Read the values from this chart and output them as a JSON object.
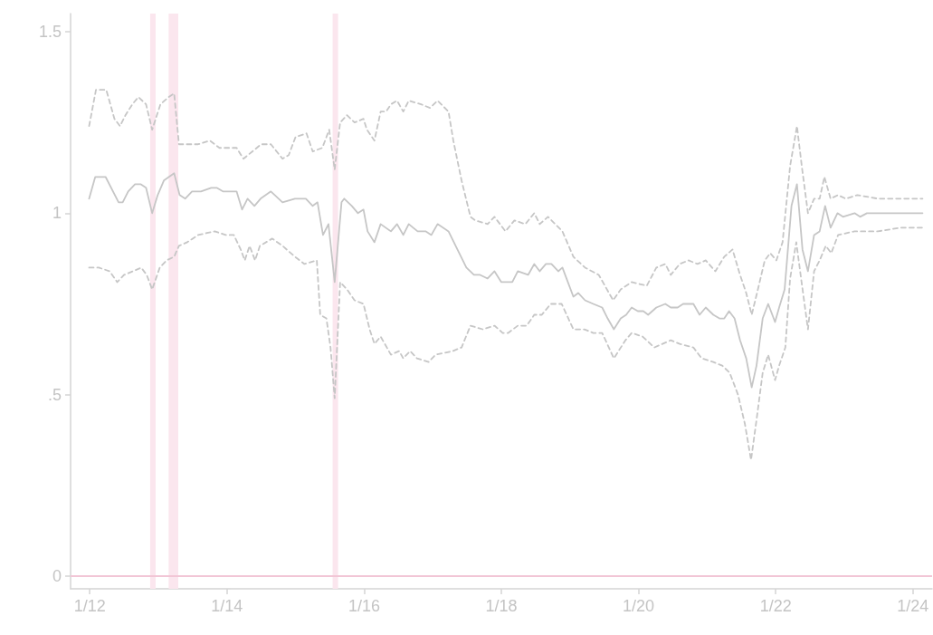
{
  "chart_data": {
    "type": "line",
    "marker": "none",
    "xlim": [
      "--01-11T17:17",
      "--01-24T06:43"
    ],
    "ylim": [
      -0.035,
      1.55
    ],
    "xticks": [
      {
        "value": "--01-12",
        "label": "1/12"
      },
      {
        "value": "--01-14",
        "label": "1/14"
      },
      {
        "value": "--01-16",
        "label": "1/16"
      },
      {
        "value": "--01-18",
        "label": "1/18"
      },
      {
        "value": "--01-20",
        "label": "1/20"
      },
      {
        "value": "--01-22",
        "label": "1/22"
      },
      {
        "value": "--01-24",
        "label": "1/24"
      }
    ],
    "yticks": [
      0,
      {
        "value": 0.5,
        "label": ".5"
      },
      1,
      1.5
    ],
    "series": [
      {
        "color": "#c6c6c6",
        "line_style": "solid",
        "x": [
          "--01-11T23:46",
          "--01-12T01:55",
          "--01-12T05:31",
          "--01-12T10:05",
          "--01-12T11:31",
          "--01-12T13:26",
          "--01-12T15:50",
          "--01-12T17:46",
          "--01-12T19:41",
          "--01-12T21:50",
          "--01-12T23:46",
          "--01-13T01:55",
          "--01-13T05:31",
          "--01-13T07:26",
          "--01-13T09:22",
          "--01-13T11:46",
          "--01-13T14:53",
          "--01-13T18:29",
          "--01-13T20:24",
          "--01-13T22:34",
          "--01-14T01:12",
          "--01-14T03:22",
          "--01-14T05:17",
          "--01-14T07:12",
          "--01-14T09:36",
          "--01-14T11:46",
          "--01-14T15:22",
          "--01-14T19:26",
          "--01-14T23:46",
          "--01-15T03:36",
          "--01-15T06:00",
          "--01-15T07:41",
          "--01-15T09:36",
          "--01-15T11:31",
          "--01-15T13:41",
          "--01-15T16:05",
          "--01-15T17:02",
          "--01-15T19:41",
          "--01-15T21:50",
          "--01-15T23:46",
          "--01-16T01:12",
          "--01-16T03:36",
          "--01-16T05:46",
          "--01-16T09:22",
          "--01-16T11:31",
          "--01-16T13:41",
          "--01-16T15:36",
          "--01-16T18:43",
          "--01-16T21:36",
          "--01-16T23:31",
          "--01-17T01:41",
          "--01-17T05:31",
          "--01-17T08:38",
          "--01-17T11:46",
          "--01-17T14:24",
          "--01-17T16:34",
          "--01-17T19:12",
          "--01-17T21:36",
          "--01-18T00:00",
          "--01-18T02:10",
          "--01-18T03:50",
          "--01-18T05:46",
          "--01-18T09:22",
          "--01-18T11:31",
          "--01-18T13:26",
          "--01-18T15:36",
          "--01-18T17:31",
          "--01-18T19:55",
          "--01-18T21:22",
          "--01-19T01:12",
          "--01-19T02:53",
          "--01-19T05:17",
          "--01-19T08:10",
          "--01-19T11:17",
          "--01-19T13:12",
          "--01-19T15:22",
          "--01-19T17:46",
          "--01-19T19:41",
          "--01-19T21:36",
          "--01-19T23:46",
          "--01-20T01:41",
          "--01-20T03:22",
          "--01-20T06:14",
          "--01-20T09:22",
          "--01-20T11:17",
          "--01-20T13:41",
          "--01-20T15:36",
          "--01-20T19:12",
          "--01-20T21:22",
          "--01-20T23:31",
          "--01-21T02:10",
          "--01-21T04:19",
          "--01-21T06:00",
          "--01-21T07:41",
          "--01-21T09:36",
          "--01-21T11:31",
          "--01-21T13:41",
          "--01-21T15:36",
          "--01-21T17:17",
          "--01-21T19:26",
          "--01-21T21:22",
          "--01-21T23:46",
          "--01-22T01:12",
          "--01-22T03:07",
          "--01-22T05:31",
          "--01-22T07:26",
          "--01-22T09:22",
          "--01-22T11:17",
          "--01-22T13:26",
          "--01-22T15:22",
          "--01-22T17:17",
          "--01-22T19:12",
          "--01-22T21:36",
          "--01-22T23:31",
          "--01-23T03:36",
          "--01-23T05:31",
          "--01-23T07:55",
          "--01-23T14:10",
          "--01-23T19:41",
          "--01-24T03:22"
        ],
        "values": [
          1.04,
          1.1,
          1.1,
          1.03,
          1.03,
          1.06,
          1.08,
          1.08,
          1.07,
          1.0,
          1.05,
          1.09,
          1.11,
          1.05,
          1.04,
          1.06,
          1.06,
          1.07,
          1.07,
          1.06,
          1.06,
          1.06,
          1.01,
          1.04,
          1.02,
          1.04,
          1.06,
          1.03,
          1.04,
          1.04,
          1.02,
          1.03,
          0.94,
          0.97,
          0.81,
          1.03,
          1.04,
          1.02,
          1.0,
          1.01,
          0.95,
          0.92,
          0.97,
          0.95,
          0.97,
          0.94,
          0.97,
          0.95,
          0.95,
          0.94,
          0.97,
          0.95,
          0.9,
          0.85,
          0.83,
          0.83,
          0.82,
          0.84,
          0.81,
          0.81,
          0.81,
          0.84,
          0.83,
          0.86,
          0.84,
          0.86,
          0.86,
          0.84,
          0.85,
          0.77,
          0.78,
          0.76,
          0.75,
          0.74,
          0.71,
          0.68,
          0.71,
          0.72,
          0.74,
          0.73,
          0.73,
          0.72,
          0.74,
          0.75,
          0.74,
          0.74,
          0.75,
          0.75,
          0.72,
          0.74,
          0.72,
          0.71,
          0.71,
          0.73,
          0.71,
          0.65,
          0.6,
          0.52,
          0.58,
          0.71,
          0.75,
          0.7,
          0.74,
          0.79,
          1.02,
          1.08,
          0.9,
          0.84,
          0.94,
          0.95,
          1.02,
          0.96,
          1.0,
          0.99,
          1.0,
          0.99,
          1.0,
          1.0,
          1.0,
          1.0
        ]
      },
      {
        "color": "#c6c6c6",
        "line_style": "dashed",
        "x": [
          "--01-11T23:46",
          "--01-12T02:10",
          "--01-12T05:46",
          "--01-12T08:38",
          "--01-12T10:34",
          "--01-12T12:29",
          "--01-12T14:53",
          "--01-12T17:02",
          "--01-12T19:41",
          "--01-12T21:50",
          "--01-13T00:43",
          "--01-13T03:36",
          "--01-13T05:31",
          "--01-13T07:12",
          "--01-13T10:48",
          "--01-13T13:55",
          "--01-13T18:00",
          "--01-13T21:22",
          "--01-14T01:26",
          "--01-14T03:22",
          "--01-14T05:46",
          "--01-14T08:53",
          "--01-14T12:00",
          "--01-14T15:22",
          "--01-14T19:26",
          "--01-14T21:36",
          "--01-15T00:00",
          "--01-15T03:50",
          "--01-15T06:00",
          "--01-15T09:22",
          "--01-15T11:46",
          "--01-15T13:41",
          "--01-15T15:36",
          "--01-15T18:00",
          "--01-15T20:38",
          "--01-15T23:46",
          "--01-16T00:58",
          "--01-16T03:36",
          "--01-16T05:46",
          "--01-16T07:41",
          "--01-16T09:22",
          "--01-16T11:31",
          "--01-16T13:41",
          "--01-16T15:36",
          "--01-16T19:55",
          "--01-16T23:02",
          "--01-17T01:41",
          "--01-17T05:31",
          "--01-17T07:12",
          "--01-17T10:05",
          "--01-17T13:12",
          "--01-17T14:53",
          "--01-17T19:12",
          "--01-17T21:36",
          "--01-18T01:26",
          "--01-18T04:34",
          "--01-18T08:24",
          "--01-18T11:31",
          "--01-18T13:26",
          "--01-18T16:19",
          "--01-18T21:22",
          "--01-19T01:12",
          "--01-19T05:17",
          "--01-19T10:05",
          "--01-19T15:07",
          "--01-19T17:46",
          "--01-19T21:36",
          "--01-20T02:53",
          "--01-20T06:14",
          "--01-20T09:22",
          "--01-20T11:17",
          "--01-20T14:24",
          "--01-20T17:31",
          "--01-20T20:38",
          "--01-20T23:31",
          "--01-21T02:53",
          "--01-21T06:00",
          "--01-21T08:53",
          "--01-21T11:31",
          "--01-21T13:41",
          "--01-21T15:36",
          "--01-21T17:46",
          "--01-21T20:10",
          "--01-21T22:05",
          "--01-22T00:14",
          "--01-22T02:24",
          "--01-22T05:02",
          "--01-22T07:26",
          "--01-22T09:07",
          "--01-22T11:17",
          "--01-22T13:26",
          "--01-22T15:22",
          "--01-22T17:02",
          "--01-22T19:12",
          "--01-22T21:50",
          "--01-23T00:29",
          "--01-23T04:34",
          "--01-23T11:46",
          "--01-23T19:41",
          "--01-24T03:22"
        ],
        "values": [
          1.24,
          1.34,
          1.34,
          1.26,
          1.24,
          1.27,
          1.3,
          1.32,
          1.3,
          1.23,
          1.3,
          1.32,
          1.33,
          1.19,
          1.19,
          1.19,
          1.2,
          1.18,
          1.18,
          1.18,
          1.15,
          1.17,
          1.19,
          1.19,
          1.15,
          1.16,
          1.21,
          1.22,
          1.17,
          1.18,
          1.23,
          1.12,
          1.25,
          1.27,
          1.25,
          1.26,
          1.23,
          1.2,
          1.28,
          1.28,
          1.3,
          1.31,
          1.28,
          1.31,
          1.3,
          1.29,
          1.31,
          1.28,
          1.2,
          1.09,
          0.99,
          0.98,
          0.97,
          0.99,
          0.95,
          0.98,
          0.97,
          1.0,
          0.97,
          0.99,
          0.95,
          0.88,
          0.85,
          0.83,
          0.76,
          0.79,
          0.81,
          0.8,
          0.85,
          0.86,
          0.83,
          0.86,
          0.87,
          0.86,
          0.87,
          0.84,
          0.88,
          0.9,
          0.83,
          0.78,
          0.72,
          0.79,
          0.87,
          0.89,
          0.87,
          0.92,
          1.13,
          1.24,
          1.13,
          1.0,
          1.04,
          1.04,
          1.1,
          1.04,
          1.05,
          1.04,
          1.05,
          1.04,
          1.04,
          1.04
        ]
      },
      {
        "color": "#c6c6c6",
        "line_style": "dashed",
        "x": [
          "--01-11T23:46",
          "--01-12T03:07",
          "--01-12T06:58",
          "--01-12T09:36",
          "--01-12T12:00",
          "--01-12T15:07",
          "--01-12T18:00",
          "--01-12T19:55",
          "--01-12T21:50",
          "--01-13T00:29",
          "--01-13T02:53",
          "--01-13T05:31",
          "--01-13T07:12",
          "--01-13T10:05",
          "--01-13T13:55",
          "--01-13T19:41",
          "--01-13T23:31",
          "--01-14T02:24",
          "--01-14T04:48",
          "--01-14T06:14",
          "--01-14T07:55",
          "--01-14T09:50",
          "--01-14T11:31",
          "--01-14T15:50",
          "--01-14T19:26",
          "--01-14T23:46",
          "--01-15T03:07",
          "--01-15T07:26",
          "--01-15T08:38",
          "--01-15T10:48",
          "--01-15T12:14",
          "--01-15T13:41",
          "--01-15T15:36",
          "--01-15T18:00",
          "--01-15T20:38",
          "--01-15T23:46",
          "--01-16T01:55",
          "--01-16T03:36",
          "--01-16T05:46",
          "--01-16T09:22",
          "--01-16T12:14",
          "--01-16T13:41",
          "--01-16T16:05",
          "--01-16T18:29",
          "--01-16T22:34",
          "--01-17T00:58",
          "--01-17T06:58",
          "--01-17T10:05",
          "--01-17T13:12",
          "--01-17T17:31",
          "--01-17T21:36",
          "--01-18T00:29",
          "--01-18T02:24",
          "--01-18T05:46",
          "--01-18T08:53",
          "--01-18T11:31",
          "--01-18T14:10",
          "--01-18T17:17",
          "--01-18T21:07",
          "--01-19T01:12",
          "--01-19T05:02",
          "--01-19T08:10",
          "--01-19T11:17",
          "--01-19T15:22",
          "--01-19T19:26",
          "--01-19T21:36",
          "--01-20T01:26",
          "--01-20T05:31",
          "--01-20T11:17",
          "--01-20T14:24",
          "--01-20T19:12",
          "--01-20T22:05",
          "--01-21T02:10",
          "--01-21T05:17",
          "--01-21T07:55",
          "--01-21T10:48",
          "--01-21T13:12",
          "--01-21T15:22",
          "--01-21T17:17",
          "--01-21T19:26",
          "--01-21T21:22",
          "--01-21T23:46",
          "--01-22T01:12",
          "--01-22T03:22",
          "--01-22T05:02",
          "--01-22T07:12",
          "--01-22T08:53",
          "--01-22T11:17",
          "--01-22T13:26",
          "--01-22T15:22",
          "--01-22T17:31",
          "--01-22T19:26",
          "--01-22T21:50",
          "--01-23T03:36",
          "--01-23T11:46",
          "--01-23T19:41",
          "--01-24T03:22"
        ],
        "values": [
          0.85,
          0.85,
          0.84,
          0.81,
          0.83,
          0.84,
          0.85,
          0.83,
          0.79,
          0.85,
          0.87,
          0.88,
          0.91,
          0.92,
          0.94,
          0.95,
          0.94,
          0.94,
          0.9,
          0.87,
          0.91,
          0.87,
          0.91,
          0.93,
          0.91,
          0.88,
          0.86,
          0.87,
          0.72,
          0.71,
          0.63,
          0.49,
          0.81,
          0.79,
          0.76,
          0.75,
          0.68,
          0.64,
          0.66,
          0.61,
          0.62,
          0.6,
          0.62,
          0.6,
          0.59,
          0.61,
          0.62,
          0.63,
          0.69,
          0.68,
          0.69,
          0.67,
          0.67,
          0.69,
          0.69,
          0.72,
          0.72,
          0.75,
          0.75,
          0.68,
          0.68,
          0.67,
          0.67,
          0.6,
          0.65,
          0.67,
          0.66,
          0.63,
          0.65,
          0.64,
          0.63,
          0.6,
          0.59,
          0.58,
          0.56,
          0.5,
          0.42,
          0.32,
          0.43,
          0.56,
          0.61,
          0.54,
          0.58,
          0.63,
          0.82,
          0.92,
          0.82,
          0.68,
          0.84,
          0.87,
          0.91,
          0.89,
          0.94,
          0.95,
          0.95,
          0.96,
          0.96
        ]
      }
    ],
    "ref_lines": [
      {
        "axis": "y",
        "value": 0,
        "color": "#f2c6d6"
      }
    ],
    "bands": [
      {
        "axis": "x",
        "from": "--01-12T21:07",
        "to": "--01-12T23:02",
        "color": "#fbe6ee"
      },
      {
        "axis": "x",
        "from": "--01-13T03:36",
        "to": "--01-13T06:58",
        "color": "#fbe6ee"
      },
      {
        "axis": "x",
        "from": "--01-15T12:58",
        "to": "--01-15T14:53",
        "color": "#fbe6ee"
      }
    ]
  }
}
